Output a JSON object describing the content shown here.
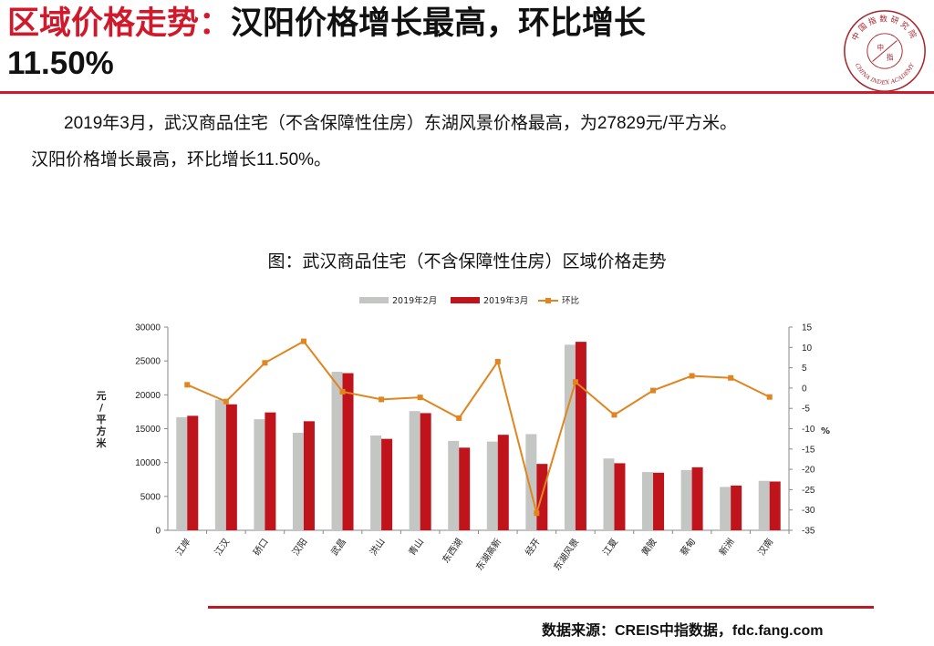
{
  "title": {
    "highlight": "区域价格走势：",
    "rest": "汉阳价格增长最高，环比增长",
    "pct": "11.50%"
  },
  "logo": {
    "cn_text": "中国指数研究院",
    "center_chars": [
      "中",
      "指"
    ],
    "en_text": "CHINA INDEX ACADEMY",
    "color": "#a8242c"
  },
  "intro": {
    "line1": "2019年3月，武汉商品住宅（不含保障性住房）东湖风景价格最高，为27829元/平方米。",
    "line2": "汉阳价格增长最高，环比增长11.50%。"
  },
  "chart_title": "图：武汉商品住宅（不含保障性住房）区域价格走势",
  "chart_data": {
    "type": "bar",
    "categories": [
      "江岸",
      "江汉",
      "硚口",
      "汉阳",
      "武昌",
      "洪山",
      "青山",
      "东西湖",
      "东湖高新",
      "经开",
      "东湖风景",
      "江夏",
      "黄陂",
      "蔡甸",
      "新洲",
      "汉南"
    ],
    "series": [
      {
        "name": "2019年2月",
        "type": "bar",
        "axis": "left",
        "color": "#c4c6c4",
        "values": [
          16700,
          19300,
          16400,
          14400,
          23400,
          14000,
          17600,
          13200,
          13100,
          14200,
          27400,
          10600,
          8600,
          8900,
          6400,
          7300
        ]
      },
      {
        "name": "2019年3月",
        "type": "bar",
        "axis": "left",
        "color": "#c0141c",
        "values": [
          16900,
          18600,
          17400,
          16100,
          23200,
          13500,
          17300,
          12200,
          14100,
          9800,
          27829,
          9900,
          8500,
          9300,
          6600,
          7200
        ]
      },
      {
        "name": "环比",
        "type": "line",
        "axis": "right",
        "color": "#e0851f",
        "values": [
          0.8,
          -3.3,
          6.2,
          11.5,
          -0.9,
          -2.8,
          -2.3,
          -7.4,
          6.5,
          -30.8,
          1.5,
          -6.6,
          -0.6,
          3.0,
          2.5,
          -2.2
        ]
      }
    ],
    "y_left": {
      "min": 0,
      "max": 30000,
      "ticks": [
        0,
        5000,
        10000,
        15000,
        20000,
        25000,
        30000
      ],
      "label_chars": [
        "元",
        "/",
        "平",
        "方",
        "米"
      ]
    },
    "y_right": {
      "min": -35,
      "max": 15,
      "ticks": [
        -35,
        -30,
        -25,
        -20,
        -15,
        -10,
        -5,
        0,
        5,
        10,
        15
      ],
      "label": "%"
    },
    "legend_position": "top-center",
    "grid": false
  },
  "source": "数据来源：CREIS中指数据，fdc.fang.com"
}
